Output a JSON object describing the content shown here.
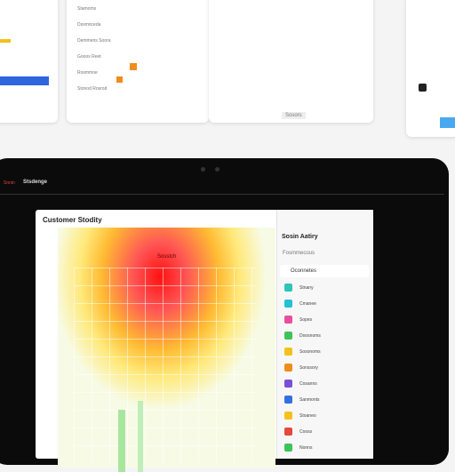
{
  "top_cards": {
    "rows": [
      "Stamoms",
      "Dssmnceda",
      "Demmens Soora",
      "Gooos Reet",
      "Rosmmoe",
      "Stonod Rosrod"
    ],
    "button": "Sosors"
  },
  "device": {
    "status": "Stsdenge",
    "badge": "Snnin"
  },
  "main": {
    "title": "Customer Stodity",
    "heatmap_label": "Sosstch"
  },
  "side_panel": {
    "title": "Sosin Aatiry",
    "subtitle": "Fosmmecous",
    "selected": "Oconnetes",
    "items": [
      {
        "label": "Stnany",
        "color": "#2ec4b6"
      },
      {
        "label": "Cmanee",
        "color": "#22c1d6"
      },
      {
        "label": "Sopes",
        "color": "#e84f9a"
      },
      {
        "label": "Doosnoms",
        "color": "#3cc45a"
      },
      {
        "label": "Sosonoms",
        "color": "#f2c21b"
      },
      {
        "label": "Sonssory",
        "color": "#f08c1e"
      },
      {
        "label": "Cosanns",
        "color": "#7b4fd6"
      },
      {
        "label": "Sanmonts",
        "color": "#3470e0"
      },
      {
        "label": "Stoaneo",
        "color": "#f2c21b"
      },
      {
        "label": "Cooss",
        "color": "#e8473c"
      },
      {
        "label": "Nonns",
        "color": "#3cc45a"
      }
    ]
  }
}
